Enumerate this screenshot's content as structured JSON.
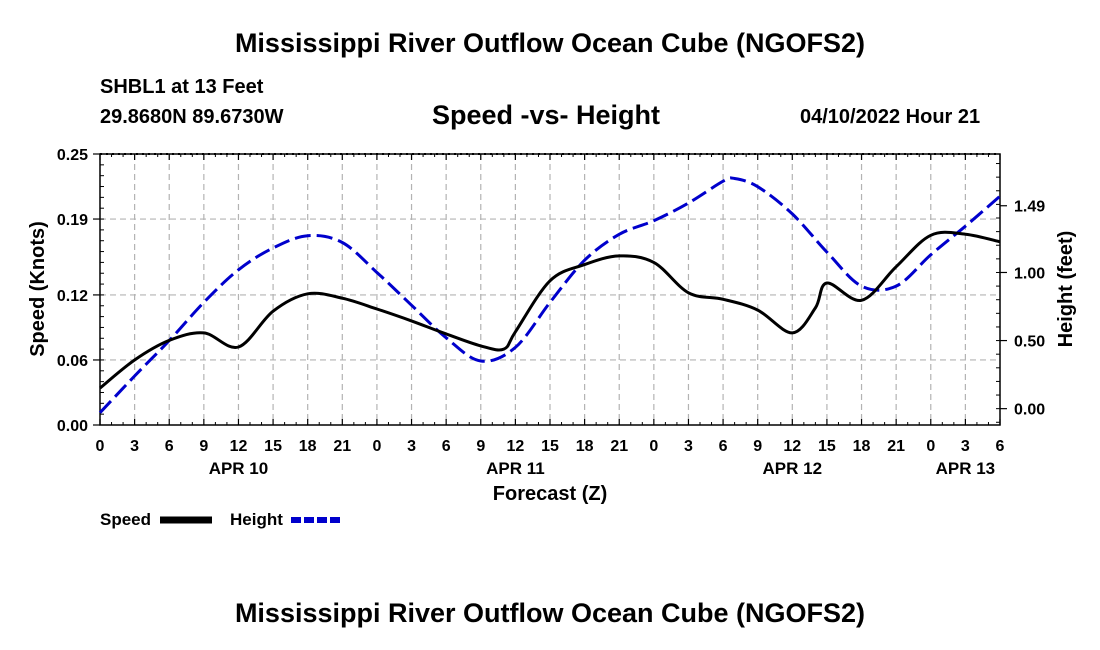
{
  "title": "Mississippi River Outflow Ocean Cube (NGOFS2)",
  "title_repeat": "Mississippi River Outflow Ocean Cube (NGOFS2)",
  "station": "SHBL1 at 13 Feet",
  "coords": "29.8680N  89.6730W",
  "subtitle": "Speed -vs- Height",
  "datetime": "04/10/2022 Hour 21",
  "colors": {
    "speed": "#000000",
    "height": "#0000cc",
    "grid": "#b3b3b3"
  },
  "chart_data": {
    "type": "line",
    "xlabel": "Forecast (Z)",
    "x_unit": "hours since 2022-04-10 00Z",
    "xlim": [
      0,
      78
    ],
    "x_ticks": [
      0,
      3,
      6,
      9,
      12,
      15,
      18,
      21,
      24,
      27,
      30,
      33,
      36,
      39,
      42,
      45,
      48,
      51,
      54,
      57,
      60,
      63,
      66,
      69,
      72,
      75,
      78
    ],
    "x_tick_labels": [
      "0",
      "3",
      "6",
      "9",
      "12",
      "15",
      "18",
      "21",
      "0",
      "3",
      "6",
      "9",
      "12",
      "15",
      "18",
      "21",
      "0",
      "3",
      "6",
      "9",
      "12",
      "15",
      "18",
      "21",
      "0",
      "3",
      "6"
    ],
    "date_labels": [
      {
        "x": 12,
        "label": "APR 10"
      },
      {
        "x": 36,
        "label": "APR 11"
      },
      {
        "x": 60,
        "label": "APR 12"
      },
      {
        "x": 75,
        "label": "APR 13"
      }
    ],
    "y_left": {
      "label": "Speed (Knots)",
      "lim": [
        0,
        0.25
      ],
      "ticks": [
        0.0,
        0.06,
        0.12,
        0.19,
        0.25
      ],
      "tick_labels": [
        "0.00",
        "0.06",
        "0.12",
        "0.19",
        "0.25"
      ]
    },
    "y_right": {
      "label": "Height (feet)",
      "lim": [
        -0.12,
        1.87
      ],
      "ticks": [
        0.0,
        0.5,
        1.0,
        1.49
      ],
      "tick_labels": [
        "0.00",
        "0.50",
        "1.00",
        "1.49"
      ]
    },
    "legend": [
      {
        "name": "Speed",
        "style": "solid"
      },
      {
        "name": "Height",
        "style": "dashed"
      }
    ],
    "series": [
      {
        "name": "Speed",
        "axis": "left",
        "x": [
          0,
          3,
          6,
          9,
          12,
          15,
          18,
          21,
          24,
          27,
          30,
          33,
          35,
          36,
          39,
          42,
          45,
          48,
          51,
          54,
          57,
          60,
          62,
          63,
          66,
          69,
          72,
          75,
          78
        ],
        "values": [
          0.034,
          0.06,
          0.078,
          0.085,
          0.072,
          0.105,
          0.121,
          0.117,
          0.107,
          0.096,
          0.084,
          0.073,
          0.07,
          0.086,
          0.133,
          0.148,
          0.156,
          0.15,
          0.122,
          0.116,
          0.106,
          0.085,
          0.108,
          0.131,
          0.115,
          0.146,
          0.175,
          0.176,
          0.169
        ]
      },
      {
        "name": "Height",
        "axis": "right",
        "x": [
          0,
          3,
          6,
          9,
          12,
          15,
          18,
          21,
          24,
          27,
          30,
          33,
          36,
          39,
          42,
          45,
          48,
          51,
          54,
          55,
          57,
          60,
          63,
          66,
          69,
          72,
          75,
          78
        ],
        "values": [
          -0.03,
          0.24,
          0.5,
          0.78,
          1.02,
          1.18,
          1.27,
          1.22,
          1.0,
          0.76,
          0.52,
          0.35,
          0.45,
          0.78,
          1.09,
          1.28,
          1.38,
          1.51,
          1.67,
          1.69,
          1.63,
          1.43,
          1.15,
          0.9,
          0.9,
          1.13,
          1.34,
          1.56
        ]
      }
    ]
  }
}
